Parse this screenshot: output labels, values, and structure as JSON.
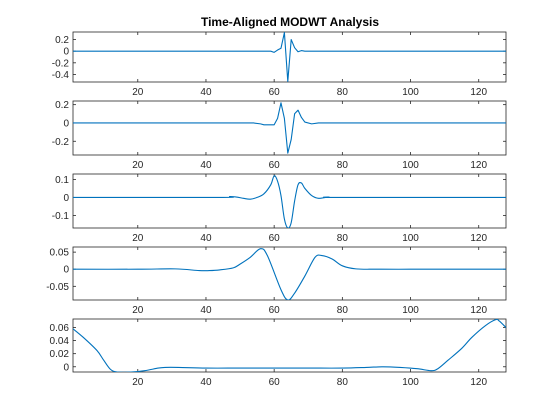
{
  "chart_data": {
    "type": "line",
    "title": "Time-Aligned MODWT Analysis",
    "line_color": "#0072BD",
    "x_range": [
      1,
      128
    ],
    "x_ticks": [
      20,
      40,
      60,
      80,
      100,
      120
    ],
    "subplots": [
      {
        "ylim": [
          -0.53,
          0.33
        ],
        "y_ticks": [
          0.2,
          0,
          -0.2,
          -0.4
        ],
        "y_tick_labels": [
          "0.2",
          "0",
          "-0.2",
          "-0.4"
        ],
        "x": [
          1,
          58,
          59,
          60,
          61,
          62,
          63,
          64,
          65,
          66,
          67,
          68,
          69,
          70,
          128
        ],
        "y": [
          0,
          0,
          0,
          -0.02,
          0.02,
          0.05,
          0.32,
          -0.52,
          0.2,
          0.06,
          -0.01,
          0.01,
          0,
          0,
          0
        ]
      },
      {
        "ylim": [
          -0.35,
          0.24
        ],
        "y_ticks": [
          0.2,
          0,
          -0.2
        ],
        "y_tick_labels": [
          "0.2",
          "0",
          "-0.2"
        ],
        "x": [
          1,
          54,
          56,
          57,
          58,
          60,
          61,
          62,
          63,
          64,
          65,
          66,
          67,
          68,
          69,
          71,
          73,
          75,
          128
        ],
        "y": [
          0,
          0,
          -0.01,
          -0.02,
          -0.02,
          -0.02,
          0.05,
          0.22,
          0.05,
          -0.33,
          -0.18,
          0.1,
          0.14,
          0.06,
          0.01,
          -0.01,
          0,
          0,
          0
        ]
      },
      {
        "ylim": [
          -0.17,
          0.13
        ],
        "y_ticks": [
          0.1,
          0,
          -0.1
        ],
        "y_tick_labels": [
          "0.1",
          "0",
          "-0.1"
        ],
        "x": [
          1,
          44,
          47,
          49,
          51,
          53,
          55,
          57,
          59,
          60,
          61,
          62,
          63,
          64,
          65,
          66,
          67,
          68,
          69,
          71,
          73,
          76,
          79,
          128
        ],
        "y": [
          0,
          0,
          0.005,
          0.002,
          -0.005,
          -0.01,
          0,
          0.02,
          0.07,
          0.12,
          0.09,
          0.01,
          -0.12,
          -0.17,
          -0.14,
          -0.02,
          0.07,
          0.08,
          0.05,
          0.01,
          -0.005,
          0.002,
          0,
          0
        ],
        "smooth": true
      },
      {
        "ylim": [
          -0.09,
          0.065
        ],
        "y_ticks": [
          0.05,
          0,
          -0.05
        ],
        "y_tick_labels": [
          "0.05",
          "0",
          "-0.05"
        ],
        "x": [
          1,
          20,
          31,
          38,
          41,
          44,
          48,
          50,
          53,
          56,
          58,
          62,
          64,
          66,
          69,
          72,
          74,
          77,
          80,
          84,
          90,
          100,
          110,
          128
        ],
        "y": [
          0,
          0,
          0.001,
          -0.004,
          -0.004,
          -0.002,
          0.004,
          0.015,
          0.035,
          0.06,
          0.04,
          -0.06,
          -0.09,
          -0.07,
          -0.02,
          0.035,
          0.04,
          0.03,
          0.01,
          0.001,
          0,
          0,
          0,
          0
        ],
        "smooth": true
      },
      {
        "ylim": [
          -0.008,
          0.073
        ],
        "y_ticks": [
          0.06,
          0.04,
          0.02,
          0
        ],
        "y_tick_labels": [
          "0.06",
          "0.04",
          "0.02",
          "0"
        ],
        "x": [
          1,
          4,
          8,
          10,
          12,
          14,
          18,
          22,
          26,
          28,
          32,
          40,
          50,
          60,
          70,
          80,
          87,
          92,
          97,
          102,
          106,
          108,
          111,
          115,
          118,
          122,
          125,
          126,
          128
        ],
        "y": [
          0.058,
          0.045,
          0.025,
          0.01,
          -0.004,
          -0.008,
          -0.008,
          -0.006,
          -0.002,
          -0.001,
          -0.001,
          -0.002,
          -0.002,
          -0.002,
          -0.002,
          -0.002,
          -0.001,
          0,
          -0.001,
          -0.003,
          -0.006,
          -0.003,
          0.01,
          0.028,
          0.045,
          0.063,
          0.072,
          0.07,
          0.06
        ],
        "smooth": true
      }
    ]
  }
}
